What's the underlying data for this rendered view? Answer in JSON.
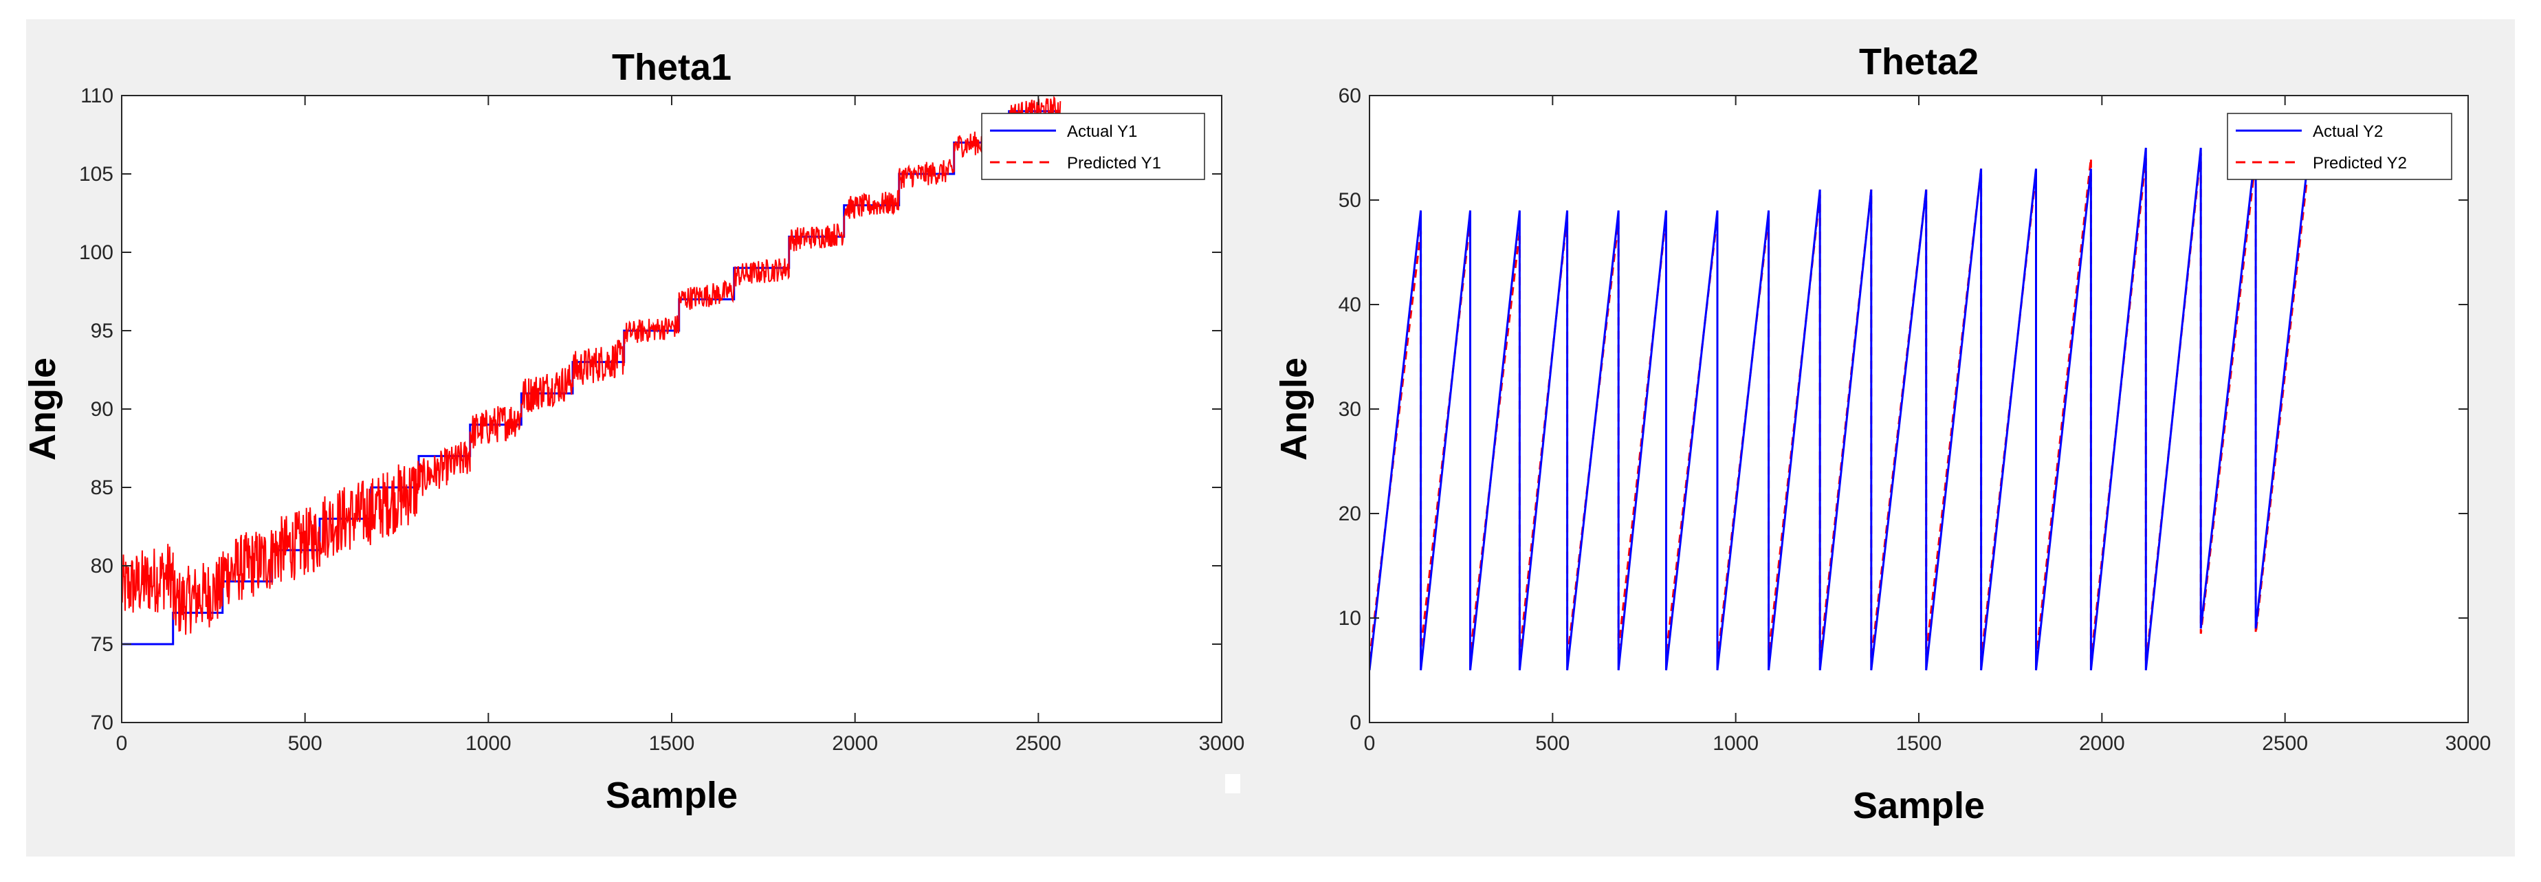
{
  "chart_data": [
    {
      "type": "line",
      "title": "Theta1",
      "xlabel": "Sample",
      "ylabel": "Angle",
      "xlim": [
        0,
        3000
      ],
      "ylim": [
        70,
        110
      ],
      "xticks": [
        0,
        500,
        1000,
        1500,
        2000,
        2500,
        3000
      ],
      "yticks": [
        70,
        75,
        80,
        85,
        90,
        95,
        100,
        105,
        110
      ],
      "xtick_labels": [
        "0",
        "500",
        "1000",
        "1500",
        "2000",
        "2500",
        "3000"
      ],
      "ytick_labels": [
        "70",
        "75",
        "80",
        "85",
        "90",
        "95",
        "100",
        "105",
        "110"
      ],
      "grid": false,
      "legend_position": "top-right",
      "noise_amplitude": 2.2,
      "series": [
        {
          "name": "Actual Y1",
          "color": "#0000ff",
          "style": "solid",
          "x": [
            0,
            140,
            140,
            275,
            275,
            410,
            410,
            540,
            540,
            680,
            680,
            810,
            810,
            950,
            950,
            1090,
            1090,
            1230,
            1230,
            1370,
            1370,
            1520,
            1520,
            1670,
            1670,
            1820,
            1820,
            1970,
            1970,
            2120,
            2120,
            2270,
            2270,
            2420,
            2420,
            2560
          ],
          "values": [
            75,
            75,
            77,
            77,
            79,
            79,
            81,
            81,
            83,
            83,
            85,
            85,
            87,
            87,
            89,
            89,
            91,
            91,
            93,
            93,
            95,
            95,
            97,
            97,
            99,
            99,
            101,
            101,
            103,
            103,
            105,
            105,
            107,
            107,
            109,
            109
          ]
        },
        {
          "name": "Predicted Y1",
          "color": "#ff0000",
          "style": "dashed",
          "x": [
            0,
            140,
            140,
            275,
            275,
            410,
            410,
            540,
            540,
            680,
            680,
            810,
            810,
            950,
            950,
            1090,
            1090,
            1230,
            1230,
            1370,
            1370,
            1520,
            1520,
            1670,
            1670,
            1820,
            1820,
            1970,
            1970,
            2120,
            2120,
            2270,
            2270,
            2420,
            2420,
            2560
          ],
          "values": [
            78.5,
            79.5,
            77.5,
            78.5,
            79.5,
            80.5,
            80.8,
            81.8,
            82.5,
            83.5,
            83.5,
            85,
            85.5,
            87,
            88.5,
            89.5,
            90.8,
            91.8,
            92.5,
            93.3,
            94.8,
            95.3,
            97,
            97.5,
            98.5,
            99,
            100.8,
            101.2,
            102.8,
            103.2,
            104.8,
            105.2,
            106.8,
            107.2,
            108.8,
            109.2
          ]
        }
      ]
    },
    {
      "type": "line",
      "title": "Theta2",
      "xlabel": "Sample",
      "ylabel": "Angle",
      "xlim": [
        0,
        3000
      ],
      "ylim": [
        0,
        60
      ],
      "xticks": [
        0,
        500,
        1000,
        1500,
        2000,
        2500,
        3000
      ],
      "yticks": [
        0,
        10,
        20,
        30,
        40,
        50,
        60
      ],
      "xtick_labels": [
        "0",
        "500",
        "1000",
        "1500",
        "2000",
        "2500",
        "3000"
      ],
      "ytick_labels": [
        "0",
        "10",
        "20",
        "30",
        "40",
        "50",
        "60"
      ],
      "grid": false,
      "legend_position": "top-right",
      "series": [
        {
          "name": "Actual Y2",
          "color": "#0000ff",
          "style": "solid",
          "x": [
            0,
            140,
            140,
            275,
            275,
            410,
            410,
            540,
            540,
            680,
            680,
            810,
            810,
            950,
            950,
            1090,
            1090,
            1230,
            1230,
            1370,
            1370,
            1520,
            1520,
            1670,
            1670,
            1820,
            1820,
            1970,
            1970,
            2120,
            2120,
            2270,
            2270,
            2420,
            2420,
            2560
          ],
          "values": [
            5,
            49,
            5,
            49,
            5,
            49,
            5,
            49,
            5,
            49,
            5,
            49,
            5,
            49,
            5,
            49,
            5,
            51,
            5,
            51,
            5,
            51,
            5,
            53,
            5,
            53,
            5,
            53,
            5,
            55,
            5,
            55,
            9,
            55,
            9,
            53
          ]
        },
        {
          "name": "Predicted Y2",
          "color": "#ff0000",
          "style": "dashed",
          "x": [
            0,
            140,
            140,
            275,
            275,
            410,
            410,
            540,
            540,
            680,
            680,
            810,
            810,
            950,
            950,
            1090,
            1090,
            1230,
            1230,
            1370,
            1370,
            1520,
            1520,
            1670,
            1670,
            1820,
            1820,
            1970,
            1970,
            2120,
            2120,
            2270,
            2270,
            2420,
            2420,
            2560
          ],
          "values": [
            6,
            47,
            7,
            48,
            6.5,
            47,
            6.5,
            48.5,
            6,
            48,
            7,
            48.5,
            6.5,
            48.5,
            6,
            48.5,
            6.5,
            50.5,
            6,
            51,
            6,
            51,
            6.5,
            53,
            6,
            52.5,
            6,
            54,
            6,
            54,
            5.5,
            54.5,
            8.5,
            54,
            8.5,
            52
          ]
        }
      ]
    }
  ]
}
